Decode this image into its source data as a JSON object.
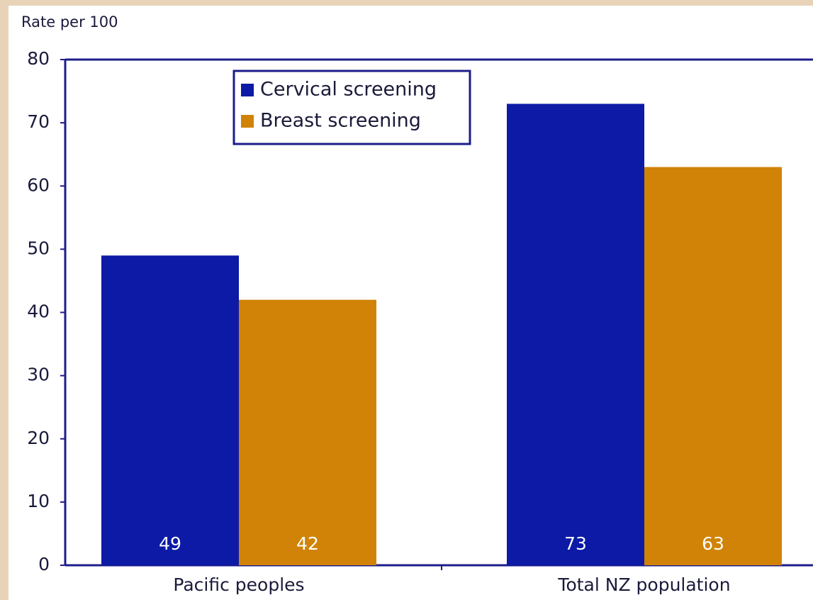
{
  "chart_data": {
    "type": "bar",
    "y_label": "Rate per 100",
    "categories": [
      "Pacific peoples",
      "Total NZ population"
    ],
    "series": [
      {
        "name": "Cervical screening",
        "color": "#0c1aa6",
        "values": [
          49,
          73
        ]
      },
      {
        "name": "Breast screening",
        "color": "#d08306",
        "values": [
          42,
          63
        ]
      }
    ],
    "ylim": [
      0,
      80
    ],
    "yticks": [
      0,
      10,
      20,
      30,
      40,
      50,
      60,
      70,
      80
    ],
    "legend": "top",
    "data_labels": true
  }
}
